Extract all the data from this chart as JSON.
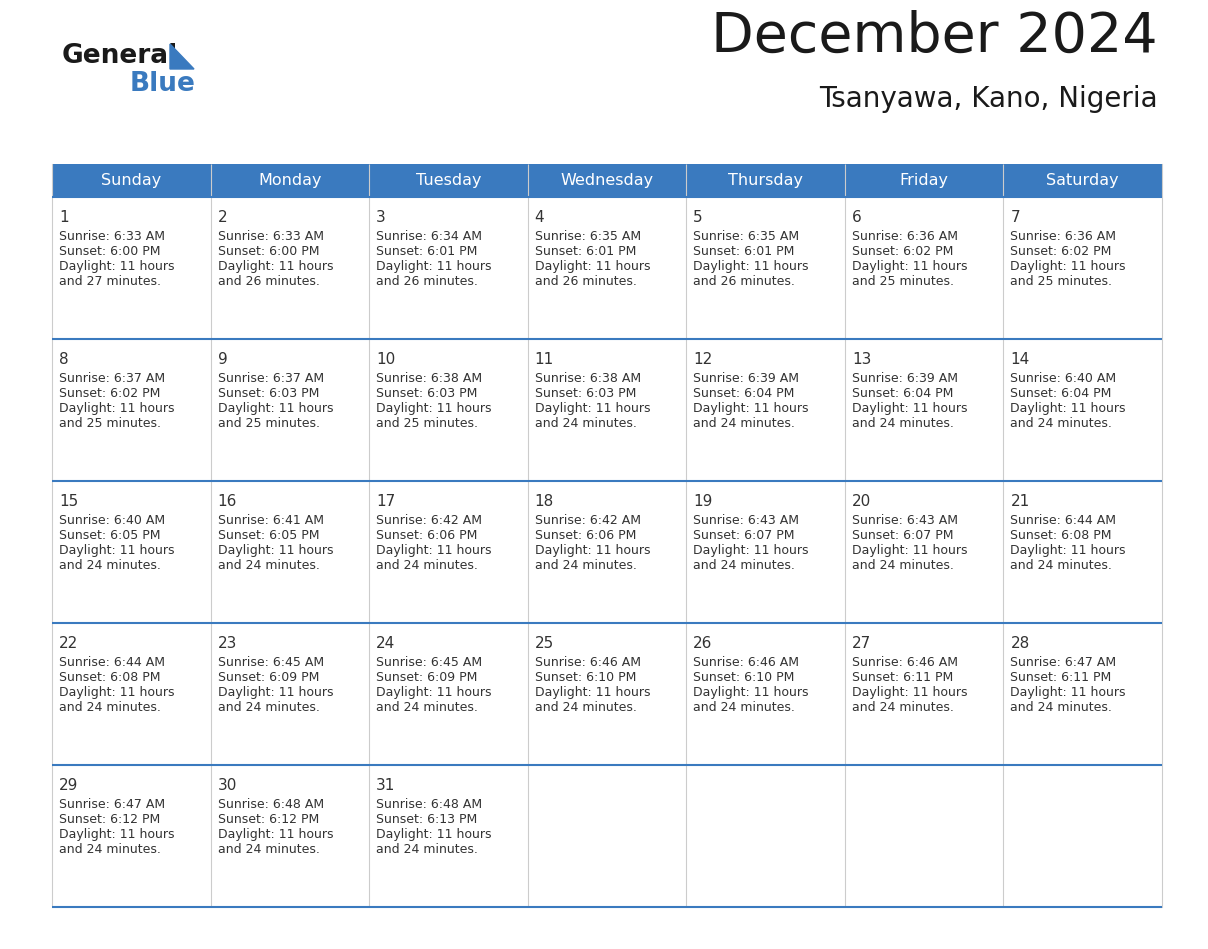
{
  "title": "December 2024",
  "subtitle": "Tsanyawa, Kano, Nigeria",
  "header_color": "#3a7abf",
  "header_text_color": "#ffffff",
  "border_color": "#3a7abf",
  "text_color": "#333333",
  "days_of_week": [
    "Sunday",
    "Monday",
    "Tuesday",
    "Wednesday",
    "Thursday",
    "Friday",
    "Saturday"
  ],
  "weeks": [
    [
      {
        "day": 1,
        "sunrise": "6:33 AM",
        "sunset": "6:00 PM",
        "daylight": "11 hours and 27 minutes."
      },
      {
        "day": 2,
        "sunrise": "6:33 AM",
        "sunset": "6:00 PM",
        "daylight": "11 hours and 26 minutes."
      },
      {
        "day": 3,
        "sunrise": "6:34 AM",
        "sunset": "6:01 PM",
        "daylight": "11 hours and 26 minutes."
      },
      {
        "day": 4,
        "sunrise": "6:35 AM",
        "sunset": "6:01 PM",
        "daylight": "11 hours and 26 minutes."
      },
      {
        "day": 5,
        "sunrise": "6:35 AM",
        "sunset": "6:01 PM",
        "daylight": "11 hours and 26 minutes."
      },
      {
        "day": 6,
        "sunrise": "6:36 AM",
        "sunset": "6:02 PM",
        "daylight": "11 hours and 25 minutes."
      },
      {
        "day": 7,
        "sunrise": "6:36 AM",
        "sunset": "6:02 PM",
        "daylight": "11 hours and 25 minutes."
      }
    ],
    [
      {
        "day": 8,
        "sunrise": "6:37 AM",
        "sunset": "6:02 PM",
        "daylight": "11 hours and 25 minutes."
      },
      {
        "day": 9,
        "sunrise": "6:37 AM",
        "sunset": "6:03 PM",
        "daylight": "11 hours and 25 minutes."
      },
      {
        "day": 10,
        "sunrise": "6:38 AM",
        "sunset": "6:03 PM",
        "daylight": "11 hours and 25 minutes."
      },
      {
        "day": 11,
        "sunrise": "6:38 AM",
        "sunset": "6:03 PM",
        "daylight": "11 hours and 24 minutes."
      },
      {
        "day": 12,
        "sunrise": "6:39 AM",
        "sunset": "6:04 PM",
        "daylight": "11 hours and 24 minutes."
      },
      {
        "day": 13,
        "sunrise": "6:39 AM",
        "sunset": "6:04 PM",
        "daylight": "11 hours and 24 minutes."
      },
      {
        "day": 14,
        "sunrise": "6:40 AM",
        "sunset": "6:04 PM",
        "daylight": "11 hours and 24 minutes."
      }
    ],
    [
      {
        "day": 15,
        "sunrise": "6:40 AM",
        "sunset": "6:05 PM",
        "daylight": "11 hours and 24 minutes."
      },
      {
        "day": 16,
        "sunrise": "6:41 AM",
        "sunset": "6:05 PM",
        "daylight": "11 hours and 24 minutes."
      },
      {
        "day": 17,
        "sunrise": "6:42 AM",
        "sunset": "6:06 PM",
        "daylight": "11 hours and 24 minutes."
      },
      {
        "day": 18,
        "sunrise": "6:42 AM",
        "sunset": "6:06 PM",
        "daylight": "11 hours and 24 minutes."
      },
      {
        "day": 19,
        "sunrise": "6:43 AM",
        "sunset": "6:07 PM",
        "daylight": "11 hours and 24 minutes."
      },
      {
        "day": 20,
        "sunrise": "6:43 AM",
        "sunset": "6:07 PM",
        "daylight": "11 hours and 24 minutes."
      },
      {
        "day": 21,
        "sunrise": "6:44 AM",
        "sunset": "6:08 PM",
        "daylight": "11 hours and 24 minutes."
      }
    ],
    [
      {
        "day": 22,
        "sunrise": "6:44 AM",
        "sunset": "6:08 PM",
        "daylight": "11 hours and 24 minutes."
      },
      {
        "day": 23,
        "sunrise": "6:45 AM",
        "sunset": "6:09 PM",
        "daylight": "11 hours and 24 minutes."
      },
      {
        "day": 24,
        "sunrise": "6:45 AM",
        "sunset": "6:09 PM",
        "daylight": "11 hours and 24 minutes."
      },
      {
        "day": 25,
        "sunrise": "6:46 AM",
        "sunset": "6:10 PM",
        "daylight": "11 hours and 24 minutes."
      },
      {
        "day": 26,
        "sunrise": "6:46 AM",
        "sunset": "6:10 PM",
        "daylight": "11 hours and 24 minutes."
      },
      {
        "day": 27,
        "sunrise": "6:46 AM",
        "sunset": "6:11 PM",
        "daylight": "11 hours and 24 minutes."
      },
      {
        "day": 28,
        "sunrise": "6:47 AM",
        "sunset": "6:11 PM",
        "daylight": "11 hours and 24 minutes."
      }
    ],
    [
      {
        "day": 29,
        "sunrise": "6:47 AM",
        "sunset": "6:12 PM",
        "daylight": "11 hours and 24 minutes."
      },
      {
        "day": 30,
        "sunrise": "6:48 AM",
        "sunset": "6:12 PM",
        "daylight": "11 hours and 24 minutes."
      },
      {
        "day": 31,
        "sunrise": "6:48 AM",
        "sunset": "6:13 PM",
        "daylight": "11 hours and 24 minutes."
      },
      null,
      null,
      null,
      null
    ]
  ],
  "logo_general_color": "#1a1a1a",
  "logo_blue_color": "#3a7abf",
  "logo_triangle_color": "#3a7abf"
}
